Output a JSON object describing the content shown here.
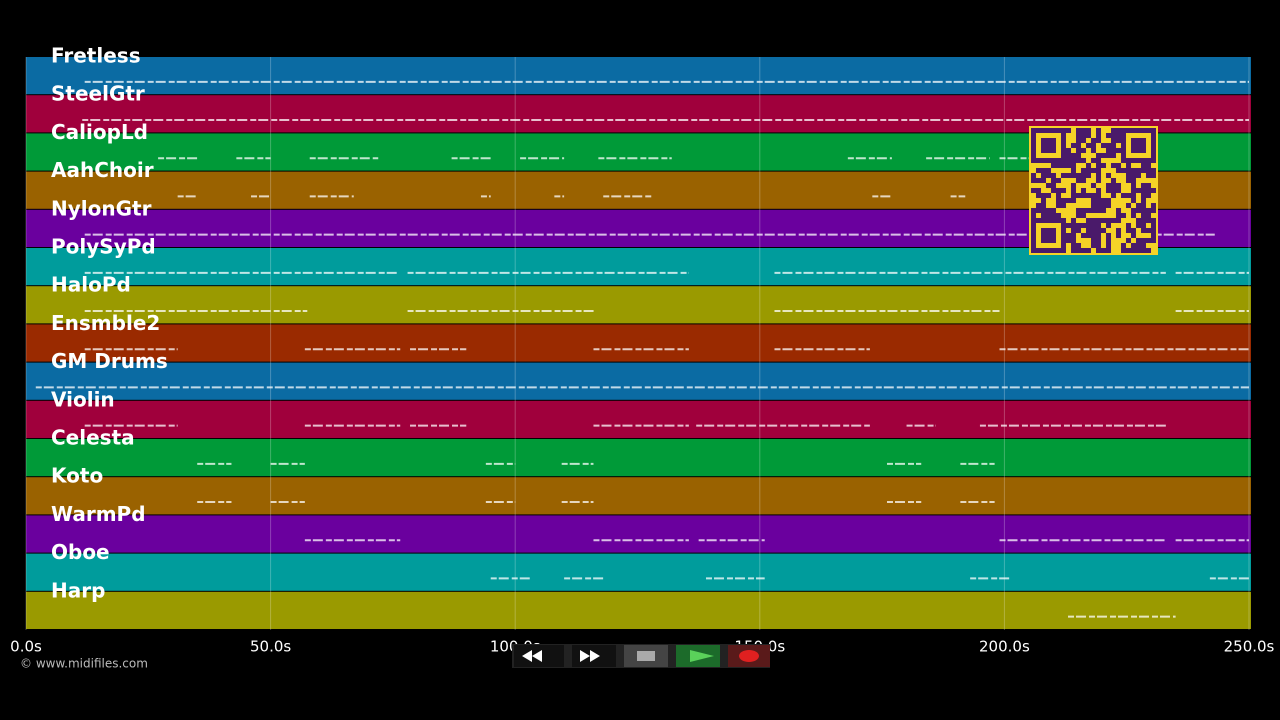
{
  "tracks": [
    {
      "name": "Fretless",
      "color": "#0b6ba3",
      "notes": [
        [
          12,
          250
        ]
      ]
    },
    {
      "name": "SteelGtr",
      "color": "#a0003c",
      "notes": [
        [
          11.5,
          250
        ]
      ]
    },
    {
      "name": "CaliopLd",
      "color": "#009a38",
      "notes": [
        [
          27,
          35
        ],
        [
          43,
          50
        ],
        [
          58,
          72
        ],
        [
          87,
          95
        ],
        [
          101,
          110
        ],
        [
          117,
          132
        ],
        [
          168,
          177
        ],
        [
          184,
          197
        ],
        [
          199,
          205
        ]
      ]
    },
    {
      "name": "AahChoir",
      "color": "#9a6200",
      "notes": [
        [
          31,
          35
        ],
        [
          46,
          50
        ],
        [
          58,
          67
        ],
        [
          93,
          95
        ],
        [
          108,
          110
        ],
        [
          118,
          128
        ],
        [
          173,
          177
        ],
        [
          189,
          192
        ]
      ]
    },
    {
      "name": "NylonGtr",
      "color": "#6a009e",
      "notes": [
        [
          12,
          243
        ]
      ]
    },
    {
      "name": "PolySyPd",
      "color": "#009c9c",
      "notes": [
        [
          12,
          76
        ],
        [
          78,
          135.5
        ],
        [
          153,
          233
        ],
        [
          235,
          250
        ]
      ]
    },
    {
      "name": "HaloPd",
      "color": "#9a9a00",
      "notes": [
        [
          12,
          57.5
        ],
        [
          78,
          116.5
        ],
        [
          153,
          199
        ],
        [
          235,
          250
        ]
      ]
    },
    {
      "name": "Ensmble2",
      "color": "#9a2a00",
      "notes": [
        [
          12,
          31
        ],
        [
          57,
          76.5
        ],
        [
          78.5,
          90
        ],
        [
          116,
          135.5
        ],
        [
          153,
          172.5
        ],
        [
          199,
          250
        ]
      ]
    },
    {
      "name": "GM Drums",
      "color": "#0b6ba3",
      "notes": [
        [
          2,
          250
        ]
      ]
    },
    {
      "name": "Violin",
      "color": "#a0003c",
      "notes": [
        [
          12,
          31
        ],
        [
          57,
          76.5
        ],
        [
          78.5,
          90
        ],
        [
          116,
          135.5
        ],
        [
          137,
          172.5
        ],
        [
          180,
          186
        ],
        [
          195,
          233
        ]
      ]
    },
    {
      "name": "Celesta",
      "color": "#009a38",
      "notes": [
        [
          35,
          42
        ],
        [
          50,
          57
        ],
        [
          94,
          100
        ],
        [
          109.5,
          116
        ],
        [
          176,
          183
        ],
        [
          191,
          198
        ]
      ]
    },
    {
      "name": "Koto",
      "color": "#9a6200",
      "notes": [
        [
          35,
          42
        ],
        [
          50,
          57
        ],
        [
          94,
          100
        ],
        [
          109.5,
          116
        ],
        [
          176,
          183
        ],
        [
          191,
          198
        ]
      ]
    },
    {
      "name": "WarmPd",
      "color": "#6a009e",
      "notes": [
        [
          57,
          76.5
        ],
        [
          116,
          135.5
        ],
        [
          137.5,
          151
        ],
        [
          199,
          233
        ],
        [
          235,
          250
        ]
      ]
    },
    {
      "name": "Oboe",
      "color": "#009c9c",
      "notes": [
        [
          95,
          103
        ],
        [
          110,
          118
        ],
        [
          139,
          151
        ],
        [
          193,
          201
        ],
        [
          242,
          250
        ]
      ]
    },
    {
      "name": "Harp",
      "color": "#9a9a00",
      "notes": [
        [
          213,
          235
        ]
      ]
    }
  ],
  "timeline": {
    "xlim": [
      0,
      250
    ],
    "ticks": [
      {
        "value": 0,
        "label": "0.0s"
      },
      {
        "value": 50,
        "label": "50.0s"
      },
      {
        "value": 100,
        "label": "100.0s"
      },
      {
        "value": 150,
        "label": "150.0s"
      },
      {
        "value": 200,
        "label": "200.0s"
      },
      {
        "value": 250,
        "label": "250.0s"
      }
    ]
  },
  "footer": "© www.midifiles.com"
}
